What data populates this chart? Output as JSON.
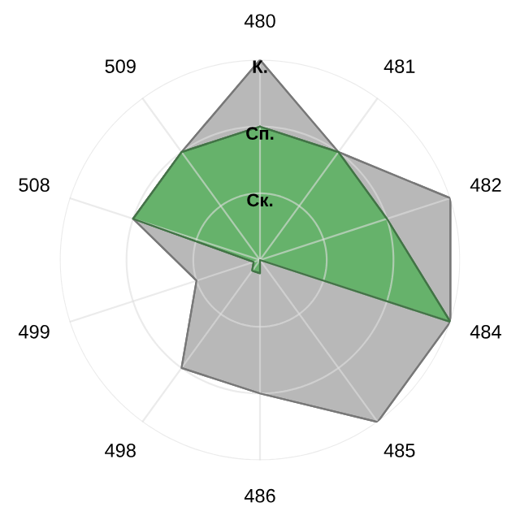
{
  "chart_data": {
    "type": "radar",
    "categories": [
      "480",
      "481",
      "482",
      "484",
      "485",
      "486",
      "498",
      "499",
      "508",
      "509"
    ],
    "series": [
      {
        "color": "#b8b8b8",
        "values": [
          3,
          2,
          3,
          3,
          3,
          2,
          2,
          1,
          2,
          2
        ]
      },
      {
        "color": "#66b26b",
        "values": [
          2,
          2,
          2,
          3,
          0,
          0.2,
          0.2,
          0.1,
          2,
          2
        ]
      }
    ],
    "ylim": [
      0,
      3
    ],
    "yticks": [
      {
        "value": 1,
        "label": "Ск."
      },
      {
        "value": 2,
        "label": "Сп."
      },
      {
        "value": 3,
        "label": "К."
      }
    ],
    "grid": true,
    "marker": "none",
    "line_style": "solid"
  }
}
